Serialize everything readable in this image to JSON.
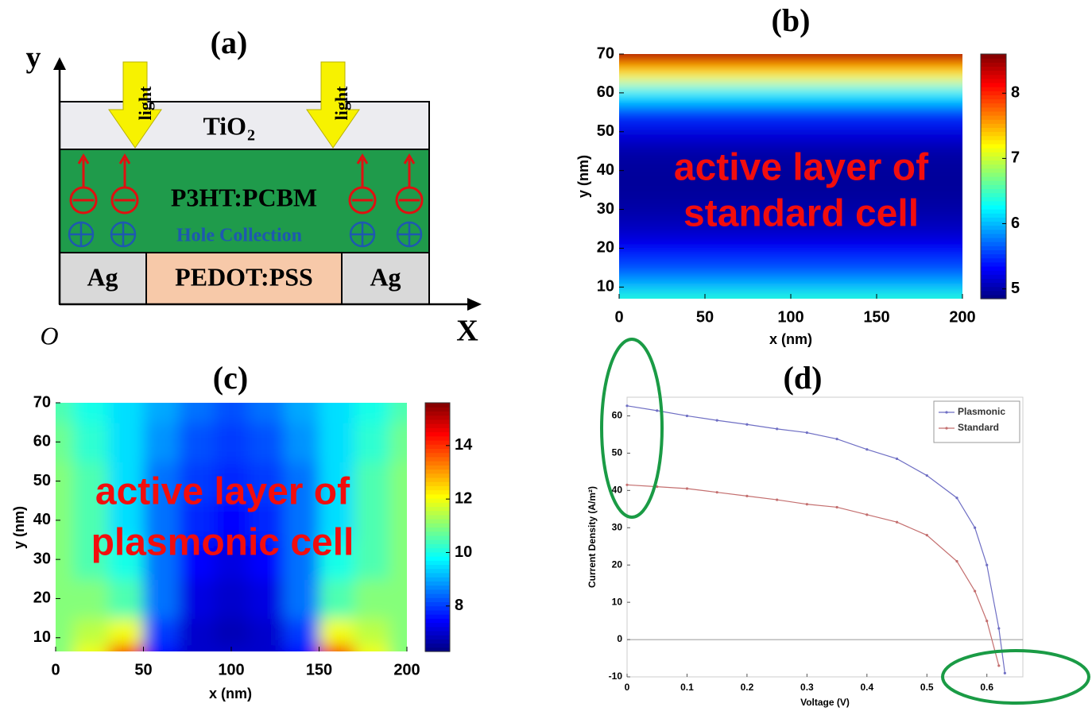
{
  "diagram": {
    "title": "(a)",
    "y_axis": "y",
    "x_axis": "X",
    "origin": "O",
    "top_layer": {
      "base": "TiO",
      "subscript": "2"
    },
    "active_layer": "P3HT:PCBM",
    "hole_label": "Hole Collection",
    "bottom_layer": [
      "Ag",
      "PEDOT:PSS",
      "Ag"
    ],
    "light": [
      "light",
      "light"
    ]
  },
  "chart_data": [
    {
      "type": "heatmap",
      "title": "(b)",
      "xlabel": "x (nm)",
      "ylabel": "y (nm)",
      "annotation": [
        "active layer of",
        "standard cell"
      ],
      "y": [
        7,
        10,
        15,
        20,
        25,
        30,
        35,
        40,
        45,
        50,
        55,
        60,
        65,
        68,
        70
      ],
      "values": [
        6.4,
        6.0,
        5.6,
        5.3,
        5.1,
        5.0,
        4.95,
        4.95,
        5.0,
        5.2,
        5.5,
        6.2,
        7.2,
        8.0,
        8.5
      ],
      "xlim": [
        0,
        200
      ],
      "ylim": [
        7,
        70
      ],
      "xticks": [
        0,
        50,
        100,
        150,
        200
      ],
      "yticks": [
        10,
        20,
        30,
        40,
        50,
        60,
        70
      ],
      "clim": [
        4.85,
        8.6
      ],
      "cticks": [
        5,
        6,
        7,
        8
      ],
      "colormap": "jet"
    },
    {
      "type": "heatmap",
      "title": "(c)",
      "xlabel": "x (nm)",
      "ylabel": "y (nm)",
      "annotation": [
        "active layer of",
        "plasmonic cell"
      ],
      "x": [
        0,
        20,
        40,
        60,
        80,
        100,
        120,
        140,
        160,
        180,
        200
      ],
      "y": [
        6.5,
        10,
        20,
        30,
        40,
        50,
        60,
        70
      ],
      "values": [
        [
          11,
          12,
          14.5,
          7.5,
          7,
          7,
          7,
          7.5,
          14.5,
          12,
          11
        ],
        [
          11,
          11.5,
          12,
          8,
          7,
          6.8,
          7,
          8,
          12,
          11.5,
          11
        ],
        [
          11,
          11,
          10.5,
          8.5,
          7.2,
          7,
          7.2,
          8.5,
          10.5,
          11,
          11
        ],
        [
          11,
          10.5,
          10,
          8.5,
          7.5,
          7.2,
          7.5,
          8.5,
          10,
          10.5,
          11
        ],
        [
          11,
          10.5,
          9.5,
          8.5,
          7.8,
          7.5,
          7.8,
          8.5,
          9.5,
          10.5,
          11
        ],
        [
          11,
          10.5,
          9.5,
          8.5,
          8,
          7.8,
          8,
          8.5,
          9.5,
          10.5,
          11
        ],
        [
          10.8,
          10.2,
          9.5,
          8.8,
          8.2,
          8,
          8.2,
          8.8,
          9.5,
          10.2,
          10.8
        ],
        [
          10.5,
          10,
          9.5,
          9,
          8.5,
          8.2,
          8.5,
          9,
          9.5,
          10,
          10.5
        ]
      ],
      "xlim": [
        0,
        200
      ],
      "ylim": [
        6.5,
        70
      ],
      "xticks": [
        0,
        50,
        100,
        150,
        200
      ],
      "yticks": [
        10,
        20,
        30,
        40,
        50,
        60,
        70
      ],
      "clim": [
        6.3,
        15.6
      ],
      "cticks": [
        8,
        10,
        12,
        14
      ],
      "colormap": "jet"
    },
    {
      "type": "line",
      "title": "(d)",
      "xlabel": "Voltage (V)",
      "ylabel": "Current Density (A/m²)",
      "x": [
        0,
        0.05,
        0.1,
        0.15,
        0.2,
        0.25,
        0.3,
        0.35,
        0.4,
        0.45,
        0.5,
        0.55,
        0.58,
        0.6,
        0.62,
        0.63
      ],
      "series": [
        {
          "name": "Plasmonic",
          "color": "#6f6fc4",
          "values": [
            62.7,
            61.4,
            60,
            58.8,
            57.7,
            56.5,
            55.5,
            53.8,
            51,
            48.5,
            44,
            38,
            30,
            20,
            3,
            -9
          ]
        },
        {
          "name": "Standard",
          "color": "#c46f6f",
          "values": [
            41.5,
            41,
            40.5,
            39.5,
            38.5,
            37.5,
            36.3,
            35.5,
            33.5,
            31.5,
            28,
            21,
            13,
            5,
            -7,
            null
          ]
        }
      ],
      "xlim": [
        0,
        0.66
      ],
      "ylim": [
        -10,
        65
      ],
      "xticks": [
        0,
        0.1,
        0.2,
        0.3,
        0.4,
        0.5,
        0.6
      ],
      "yticks": [
        -10,
        0,
        10,
        20,
        30,
        40,
        50,
        60
      ],
      "hline": 0,
      "legend": "upper right"
    }
  ]
}
